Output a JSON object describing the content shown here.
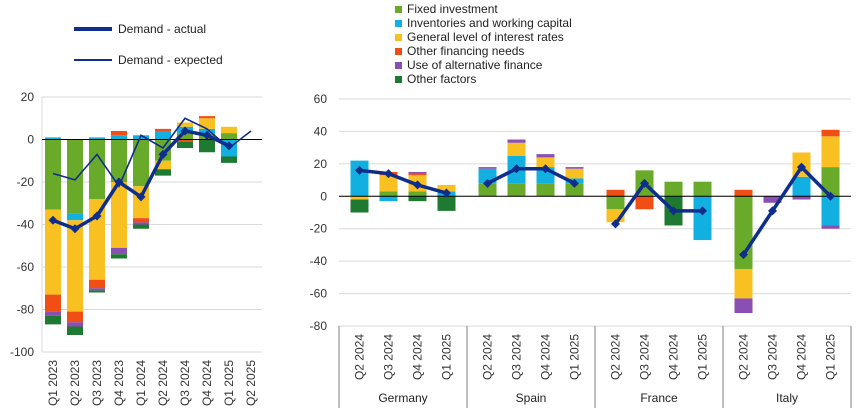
{
  "colors": {
    "fixed_investment": "#6aaa2a",
    "inventories": "#12b0e0",
    "interest_rates": "#f8c020",
    "other_financing": "#f04e14",
    "alt_finance": "#8a4fb3",
    "other_factors": "#1d7a30",
    "demand": "#0f2e8c",
    "grid": "#d9d9d9",
    "axis": "#808080"
  },
  "legend_left": {
    "actual": "Demand - actual",
    "expected": "Demand - expected"
  },
  "legend_right": [
    {
      "key": "fixed_investment",
      "label": "Fixed investment"
    },
    {
      "key": "inventories",
      "label": "Inventories and working capital"
    },
    {
      "key": "interest_rates",
      "label": "General level of interest rates"
    },
    {
      "key": "other_financing",
      "label": "Other financing needs"
    },
    {
      "key": "alt_finance",
      "label": "Use of alternative finance"
    },
    {
      "key": "other_factors",
      "label": "Other factors"
    }
  ],
  "chart_data": [
    {
      "type": "bar",
      "stacked": true,
      "categories": [
        "Q1 2023",
        "Q2 2023",
        "Q3 2023",
        "Q4 2023",
        "Q1 2024",
        "Q2 2024",
        "Q3 2024",
        "Q4 2024",
        "Q1 2025",
        "Q2 2025"
      ],
      "ylim": [
        -100,
        20
      ],
      "yticks": [
        20,
        0,
        -20,
        -40,
        -60,
        -80,
        -100
      ],
      "grid": true,
      "series": [
        {
          "name": "Fixed investment",
          "key": "fixed_investment",
          "values": [
            -33,
            -35,
            -28,
            -20,
            -22,
            -10,
            3,
            3,
            3,
            null
          ]
        },
        {
          "name": "Inventories and working capital",
          "key": "inventories",
          "values": [
            1,
            -3,
            1,
            2,
            2,
            4,
            3,
            2,
            -8,
            null
          ]
        },
        {
          "name": "General level of interest rates",
          "key": "interest_rates",
          "values": [
            -40,
            -43,
            -38,
            -31,
            -15,
            -4,
            2,
            5,
            3,
            null
          ]
        },
        {
          "name": "Other financing needs",
          "key": "other_financing",
          "values": [
            -8,
            -5,
            -4,
            2,
            -2,
            1,
            -1,
            1,
            0,
            null
          ]
        },
        {
          "name": "Use of alternative finance",
          "key": "alt_finance",
          "values": [
            -2,
            -2,
            -1,
            -3,
            -1,
            0,
            0,
            0,
            0,
            null
          ]
        },
        {
          "name": "Other factors",
          "key": "other_factors",
          "values": [
            -4,
            -4,
            -1,
            -2,
            -2,
            -3,
            -3,
            -6,
            -3,
            null
          ]
        }
      ],
      "lines": [
        {
          "name": "Demand - actual",
          "key": "actual",
          "values": [
            -38,
            -42,
            -36,
            -20,
            -27,
            -7,
            4,
            2,
            -3,
            null
          ]
        },
        {
          "name": "Demand - expected",
          "key": "expected",
          "values": [
            -16,
            -19,
            -7,
            -22,
            2,
            -4,
            10,
            5,
            -4,
            4
          ]
        }
      ]
    },
    {
      "type": "bar",
      "stacked": true,
      "groups": [
        {
          "label": "Germany",
          "categories": [
            "Q2 2024",
            "Q3 2024",
            "Q4 2024",
            "Q1 2025"
          ]
        },
        {
          "label": "Spain",
          "categories": [
            "Q2 2024",
            "Q3 2024",
            "Q4 2024",
            "Q1 2025"
          ]
        },
        {
          "label": "France",
          "categories": [
            "Q2 2024",
            "Q3 2024",
            "Q4 2024",
            "Q1 2025"
          ]
        },
        {
          "label": "Italy",
          "categories": [
            "Q2 2024",
            "Q3 2024",
            "Q4 2024",
            "Q1 2025"
          ]
        }
      ],
      "ylim": [
        -80,
        60
      ],
      "yticks": [
        60,
        40,
        20,
        0,
        -20,
        -40,
        -60,
        -80
      ],
      "grid": true,
      "series": [
        {
          "name": "Fixed investment",
          "key": "fixed_investment",
          "values": [
            0,
            3,
            3,
            0,
            8,
            8,
            8,
            8,
            -8,
            16,
            9,
            9,
            -45,
            0,
            0,
            18
          ]
        },
        {
          "name": "Inventories and working capital",
          "key": "inventories",
          "values": [
            22,
            -3,
            0,
            3,
            9,
            17,
            10,
            3,
            0,
            0,
            0,
            -27,
            0,
            0,
            12,
            -18
          ]
        },
        {
          "name": "General level of interest rates",
          "key": "interest_rates",
          "values": [
            -2,
            10,
            10,
            4,
            0,
            8,
            6,
            6,
            -8,
            0,
            0,
            0,
            -18,
            0,
            15,
            19
          ]
        },
        {
          "name": "Other financing needs",
          "key": "other_financing",
          "values": [
            0,
            2,
            1,
            0,
            0,
            0,
            0,
            0,
            4,
            -8,
            0,
            0,
            4,
            0,
            0,
            4
          ]
        },
        {
          "name": "Use of alternative finance",
          "key": "alt_finance",
          "values": [
            0,
            0,
            1,
            0,
            1,
            2,
            2,
            1,
            0,
            0,
            0,
            0,
            -9,
            -4,
            -2,
            -2
          ]
        },
        {
          "name": "Other factors",
          "key": "other_factors",
          "values": [
            -8,
            0,
            -3,
            -9,
            0,
            0,
            0,
            0,
            0,
            0,
            -18,
            0,
            0,
            0,
            0,
            0
          ]
        }
      ],
      "lines": [
        {
          "name": "Demand - actual",
          "key": "actual",
          "segments": [
            [
              16,
              14,
              7,
              2
            ],
            [
              8,
              17,
              17,
              8
            ],
            [
              -17,
              8,
              -9,
              -9
            ],
            [
              -36,
              -9,
              18,
              0
            ]
          ]
        }
      ]
    }
  ]
}
